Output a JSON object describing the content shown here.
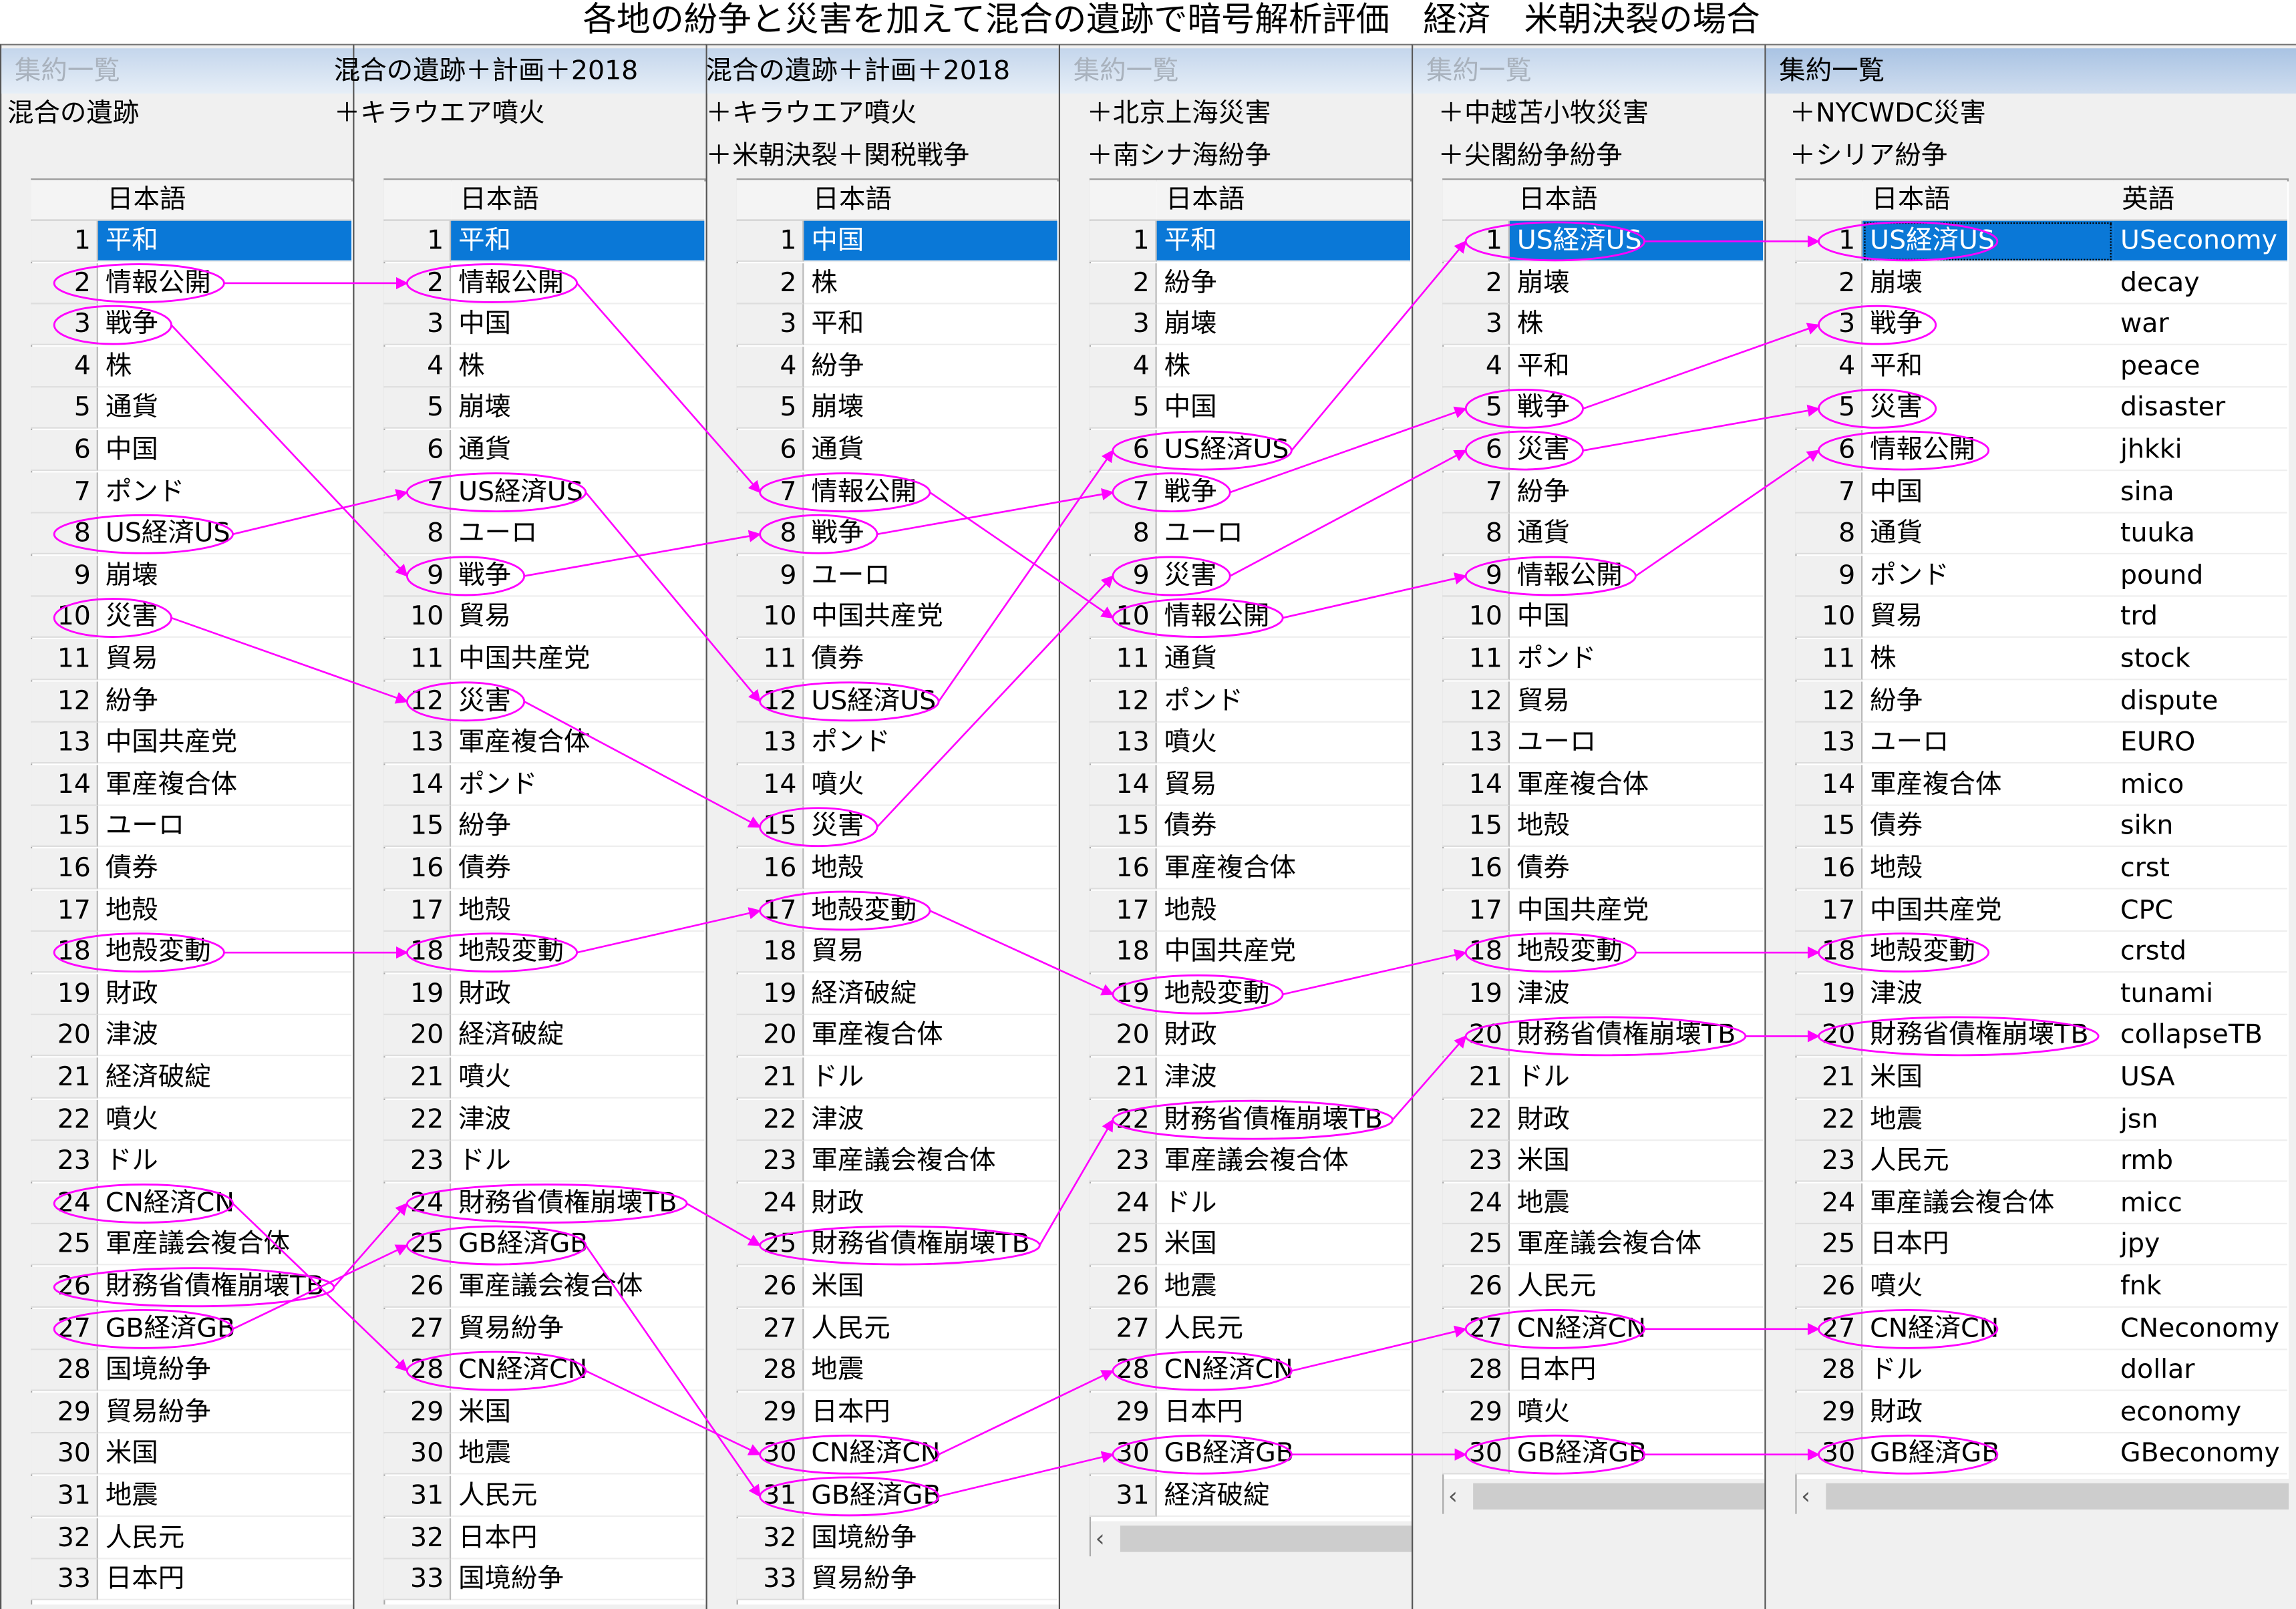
{
  "title": "各地の紛争と災害を加えて混合の遺跡で暗号解析評価　経済　米朝決裂の場合",
  "accent_color": "#ff00ff",
  "selection_color": "#0a78d7",
  "panels": [
    {
      "header": "集約一覧",
      "header_state": "inactive",
      "subtitles": [
        "混合の遺跡"
      ],
      "columns": [
        "日本語"
      ],
      "rows": [
        "平和",
        "情報公開",
        "戦争",
        "株",
        "通貨",
        "中国",
        "ポンド",
        "US経済US",
        "崩壊",
        "災害",
        "貿易",
        "紛争",
        "中国共産党",
        "軍産複合体",
        "ユーロ",
        "債券",
        "地殻",
        "地殻変動",
        "財政",
        "津波",
        "経済破綻",
        "噴火",
        "ドル",
        "CN経済CN",
        "軍産議会複合体",
        "財務省債権崩壊TB",
        "GB経済GB",
        "国境紛争",
        "貿易紛争",
        "米国",
        "地震",
        "人民元",
        "日本円"
      ],
      "circled": [
        2,
        3,
        8,
        10,
        18,
        24,
        26,
        27
      ]
    },
    {
      "header": "混合の遺跡＋計画＋2018",
      "header_state": "title",
      "subtitles": [
        "＋キラウエア噴火"
      ],
      "columns": [
        "日本語"
      ],
      "rows": [
        "平和",
        "情報公開",
        "中国",
        "株",
        "崩壊",
        "通貨",
        "US経済US",
        "ユーロ",
        "戦争",
        "貿易",
        "中国共産党",
        "災害",
        "軍産複合体",
        "ポンド",
        "紛争",
        "債券",
        "地殻",
        "地殻変動",
        "財政",
        "経済破綻",
        "噴火",
        "津波",
        "ドル",
        "財務省債権崩壊TB",
        "GB経済GB",
        "軍産議会複合体",
        "貿易紛争",
        "CN経済CN",
        "米国",
        "地震",
        "人民元",
        "日本円",
        "国境紛争"
      ],
      "circled": [
        2,
        7,
        9,
        12,
        18,
        24,
        25,
        28
      ]
    },
    {
      "header": "混合の遺跡＋計画＋2018",
      "header_state": "title",
      "subtitles": [
        "＋キラウエア噴火",
        "＋米朝決裂＋関税戦争"
      ],
      "columns": [
        "日本語"
      ],
      "rows": [
        "中国",
        "株",
        "平和",
        "紛争",
        "崩壊",
        "通貨",
        "情報公開",
        "戦争",
        "ユーロ",
        "中国共産党",
        "債券",
        "US経済US",
        "ポンド",
        "噴火",
        "災害",
        "地殻",
        "地殻変動",
        "貿易",
        "経済破綻",
        "軍産複合体",
        "ドル",
        "津波",
        "軍産議会複合体",
        "財政",
        "財務省債権崩壊TB",
        "米国",
        "人民元",
        "地震",
        "日本円",
        "CN経済CN",
        "GB経済GB",
        "国境紛争",
        "貿易紛争"
      ],
      "circled": [
        7,
        8,
        12,
        15,
        17,
        25,
        30,
        31
      ]
    },
    {
      "header": "集約一覧",
      "header_state": "inactive",
      "subtitles": [
        "＋北京上海災害",
        "＋南シナ海紛争"
      ],
      "columns": [
        "日本語"
      ],
      "rows": [
        "平和",
        "紛争",
        "崩壊",
        "株",
        "中国",
        "US経済US",
        "戦争",
        "ユーロ",
        "災害",
        "情報公開",
        "通貨",
        "ポンド",
        "噴火",
        "貿易",
        "債券",
        "軍産複合体",
        "地殻",
        "中国共産党",
        "地殻変動",
        "財政",
        "津波",
        "財務省債権崩壊TB",
        "軍産議会複合体",
        "ドル",
        "米国",
        "地震",
        "人民元",
        "CN経済CN",
        "日本円",
        "GB経済GB",
        "経済破綻"
      ],
      "circled": [
        6,
        7,
        9,
        10,
        19,
        22,
        28,
        30
      ]
    },
    {
      "header": "集約一覧",
      "header_state": "inactive",
      "subtitles": [
        "＋中越苫小牧災害",
        "＋尖閣紛争紛争"
      ],
      "columns": [
        "日本語"
      ],
      "rows": [
        "US経済US",
        "崩壊",
        "株",
        "平和",
        "戦争",
        "災害",
        "紛争",
        "通貨",
        "情報公開",
        "中国",
        "ポンド",
        "貿易",
        "ユーロ",
        "軍産複合体",
        "地殻",
        "債券",
        "中国共産党",
        "地殻変動",
        "津波",
        "財務省債権崩壊TB",
        "ドル",
        "財政",
        "米国",
        "地震",
        "軍産議会複合体",
        "人民元",
        "CN経済CN",
        "日本円",
        "噴火",
        "GB経済GB"
      ],
      "circled": [
        1,
        5,
        6,
        9,
        18,
        20,
        27,
        30
      ]
    },
    {
      "header": "集約一覧",
      "header_state": "active",
      "subtitles": [
        "＋NYCWDC災害",
        "＋シリア紛争"
      ],
      "columns": [
        "日本語",
        "英語"
      ],
      "rows": [
        "US経済US",
        "崩壊",
        "戦争",
        "平和",
        "災害",
        "情報公開",
        "中国",
        "通貨",
        "ポンド",
        "貿易",
        "株",
        "紛争",
        "ユーロ",
        "軍産複合体",
        "債券",
        "地殻",
        "中国共産党",
        "地殻変動",
        "津波",
        "財務省債権崩壊TB",
        "米国",
        "地震",
        "人民元",
        "軍産議会複合体",
        "日本円",
        "噴火",
        "CN経済CN",
        "ドル",
        "財政",
        "GB経済GB"
      ],
      "rows_en": [
        "USeconomy",
        "decay",
        "war",
        "peace",
        "disaster",
        "jhkki",
        "sina",
        "tuuka",
        "pound",
        "trd",
        "stock",
        "dispute",
        "EURO",
        "mico",
        "sikn",
        "crst",
        "CPC",
        "crstd",
        "tunami",
        "collapseTB",
        "USA",
        "jsn",
        "rmb",
        "micc",
        "jpy",
        "fnk",
        "CNeconomy",
        "dollar",
        "economy",
        "GBeconomy"
      ],
      "circled": [
        1,
        3,
        5,
        6,
        18,
        20,
        27,
        30
      ]
    }
  ],
  "links": [
    [
      [
        2,
        2
      ],
      [
        3,
        9
      ],
      [
        8,
        7
      ],
      [
        10,
        12
      ],
      [
        18,
        18
      ],
      [
        24,
        28
      ],
      [
        26,
        24
      ],
      [
        27,
        25
      ]
    ],
    [
      [
        2,
        7
      ],
      [
        9,
        8
      ],
      [
        7,
        12
      ],
      [
        12,
        15
      ],
      [
        18,
        17
      ],
      [
        24,
        25
      ],
      [
        25,
        31
      ],
      [
        28,
        30
      ]
    ],
    [
      [
        7,
        10
      ],
      [
        8,
        7
      ],
      [
        12,
        6
      ],
      [
        15,
        9
      ],
      [
        17,
        19
      ],
      [
        25,
        22
      ],
      [
        30,
        28
      ],
      [
        31,
        30
      ]
    ],
    [
      [
        6,
        1
      ],
      [
        7,
        5
      ],
      [
        9,
        6
      ],
      [
        10,
        9
      ],
      [
        19,
        18
      ],
      [
        22,
        20
      ],
      [
        28,
        27
      ],
      [
        30,
        30
      ]
    ],
    [
      [
        1,
        1
      ],
      [
        5,
        3
      ],
      [
        6,
        5
      ],
      [
        9,
        6
      ],
      [
        18,
        18
      ],
      [
        20,
        20
      ],
      [
        27,
        27
      ],
      [
        30,
        30
      ]
    ]
  ],
  "selected_row": 1,
  "scroll_left_icon": "‹"
}
